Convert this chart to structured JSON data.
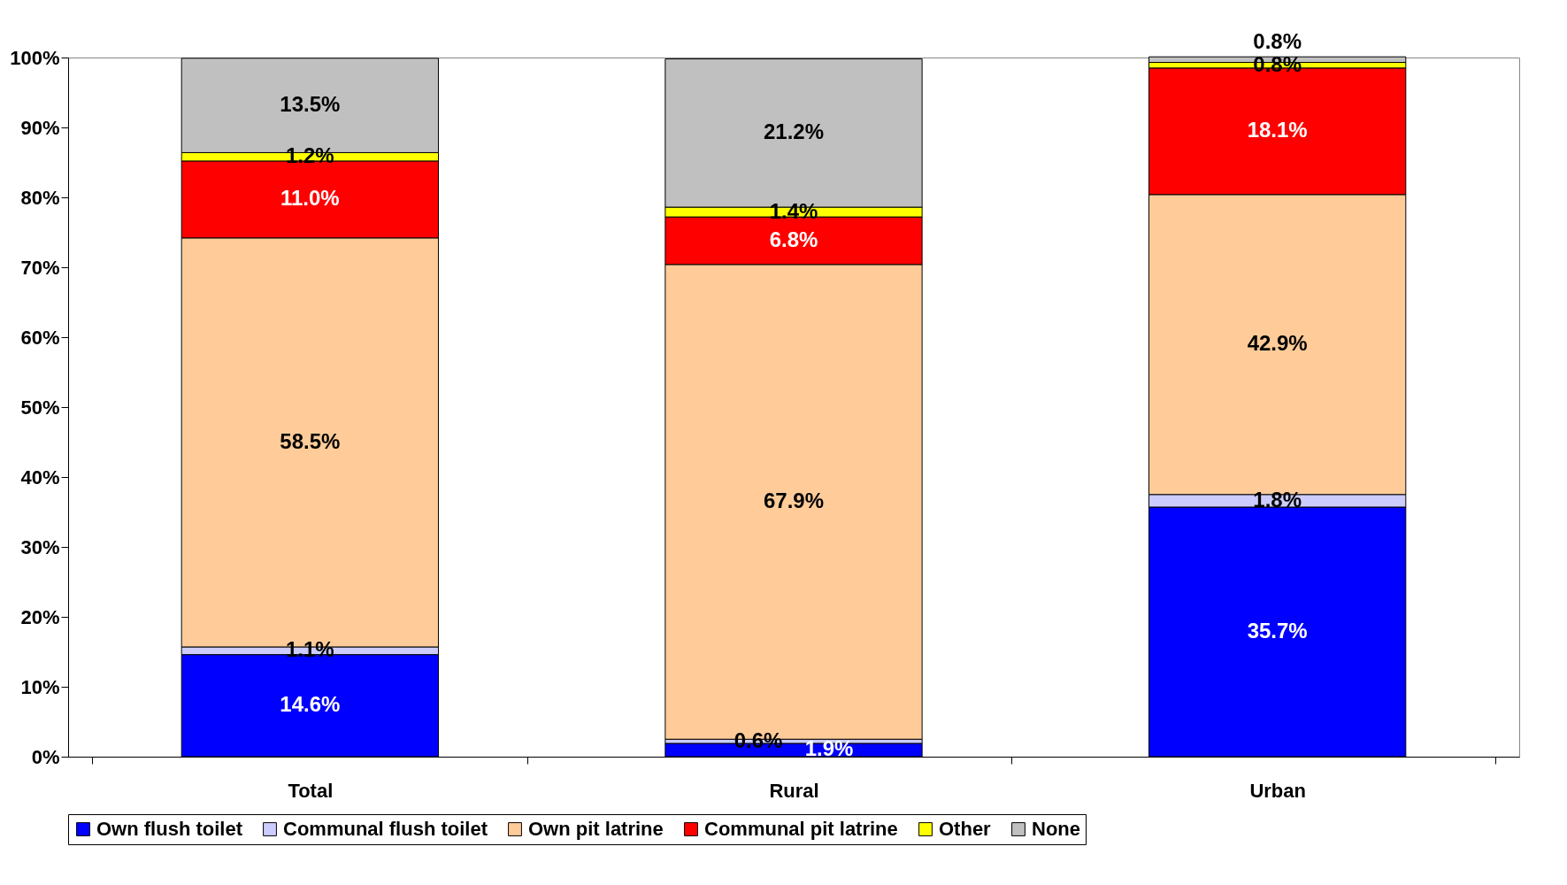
{
  "chart_data": {
    "type": "bar",
    "stacked": true,
    "categories": [
      "Total",
      "Rural",
      "Urban"
    ],
    "series": [
      {
        "name": "Own flush toilet",
        "color": "#0000ff",
        "values": [
          14.6,
          1.9,
          35.7
        ],
        "value_labels": [
          "14.6%",
          "1.9%",
          "35.7%"
        ]
      },
      {
        "name": "Communal flush toilet",
        "color": "#ccccff",
        "values": [
          1.1,
          0.6,
          1.8
        ],
        "value_labels": [
          "1.1%",
          "0.6%",
          "1.8%"
        ]
      },
      {
        "name": "Own pit latrine",
        "color": "#ffcc99",
        "values": [
          58.5,
          67.9,
          42.9
        ],
        "value_labels": [
          "58.5%",
          "67.9%",
          "42.9%"
        ]
      },
      {
        "name": "Communal pit latrine",
        "color": "#ff0000",
        "values": [
          11.0,
          6.8,
          18.1
        ],
        "value_labels": [
          "11.0%",
          "6.8%",
          "18.1%"
        ]
      },
      {
        "name": "Other",
        "color": "#ffff00",
        "values": [
          1.2,
          1.4,
          0.8
        ],
        "value_labels": [
          "1.2%",
          "1.4%",
          "0.8%"
        ]
      },
      {
        "name": "None",
        "color": "#c0c0c0",
        "values": [
          13.5,
          21.2,
          0.8
        ],
        "value_labels": [
          "13.5%",
          "21.2%",
          "0.8%"
        ]
      }
    ],
    "ylim": [
      0,
      100
    ],
    "yticks": [
      {
        "value": 0,
        "label": "0%"
      },
      {
        "value": 10,
        "label": "10%"
      },
      {
        "value": 20,
        "label": "20%"
      },
      {
        "value": 30,
        "label": "30%"
      },
      {
        "value": 40,
        "label": "40%"
      },
      {
        "value": 50,
        "label": "50%"
      },
      {
        "value": 60,
        "label": "60%"
      },
      {
        "value": 70,
        "label": "70%"
      },
      {
        "value": 80,
        "label": "80%"
      },
      {
        "value": 90,
        "label": "90%"
      },
      {
        "value": 100,
        "label": "100%"
      }
    ],
    "grid": false,
    "legend": "bottom"
  }
}
